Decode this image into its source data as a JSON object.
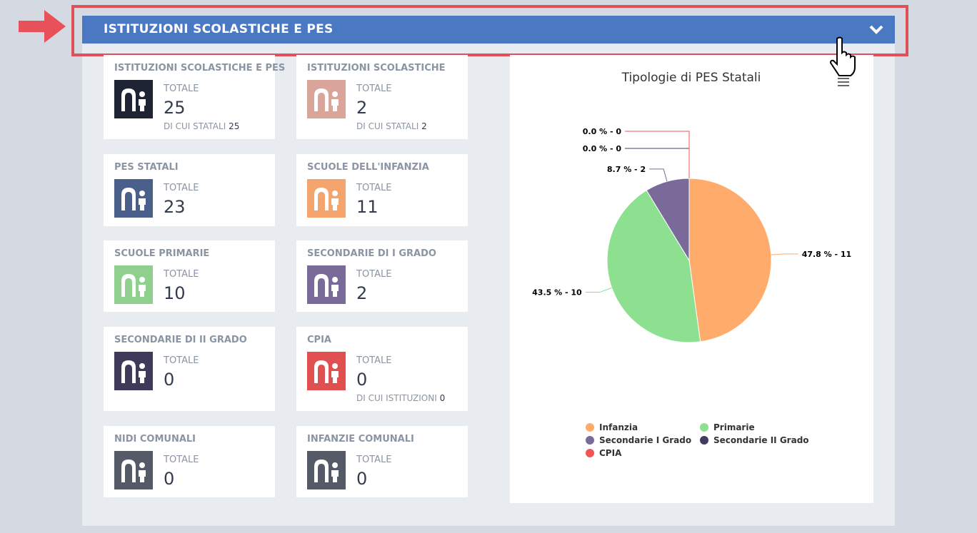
{
  "header": {
    "title": "ISTITUZIONI SCOLASTICHE E PES"
  },
  "cards": [
    {
      "title": "ISTITUZIONI SCOLASTICHE E PES",
      "label": "TOTALE",
      "value": 25,
      "sub_label": "DI CUI STATALI",
      "sub_value": 25,
      "color": "#1f2435"
    },
    {
      "title": "ISTITUZIONI SCOLASTICHE",
      "label": "TOTALE",
      "value": 2,
      "sub_label": "DI CUI STATALI",
      "sub_value": 2,
      "color": "#d9a49a"
    },
    {
      "title": "PES STATALI",
      "label": "TOTALE",
      "value": 23,
      "color": "#4a5f8a"
    },
    {
      "title": "SCUOLE DELL'INFANZIA",
      "label": "TOTALE",
      "value": 11,
      "color": "#f4a56e"
    },
    {
      "title": "SCUOLE PRIMARIE",
      "label": "TOTALE",
      "value": 10,
      "color": "#8fd08f"
    },
    {
      "title": "SECONDARIE DI I GRADO",
      "label": "TOTALE",
      "value": 2,
      "color": "#7a6a9a"
    },
    {
      "title": "SECONDARIE DI II GRADO",
      "label": "TOTALE",
      "value": 0,
      "color": "#3f3a5a"
    },
    {
      "title": "CPIA",
      "label": "TOTALE",
      "value": 0,
      "sub_label": "DI CUI ISTITUZIONI",
      "sub_value": 0,
      "color": "#e05050"
    },
    {
      "title": "NIDI COMUNALI",
      "label": "TOTALE",
      "value": 0,
      "color": "#555b66"
    },
    {
      "title": "INFANZIE COMUNALI",
      "label": "TOTALE",
      "value": 0,
      "color": "#555b66"
    }
  ],
  "chart_data": {
    "type": "pie",
    "title": "Tipologie di PES Statali",
    "categories": [
      "Infanzia",
      "Primarie",
      "Secondarie I Grado",
      "Secondarie II Grado",
      "CPIA"
    ],
    "values": [
      11,
      10,
      2,
      0,
      0
    ],
    "value_labels": [
      "47.8 % - 11",
      "43.5 % - 10",
      "8.7 % - 2",
      "0.0 % - 0",
      "0.0 % - 0"
    ],
    "colors": [
      "#ffab6b",
      "#8de08f",
      "#7a6a9a",
      "#433c5e",
      "#f05454"
    ]
  }
}
